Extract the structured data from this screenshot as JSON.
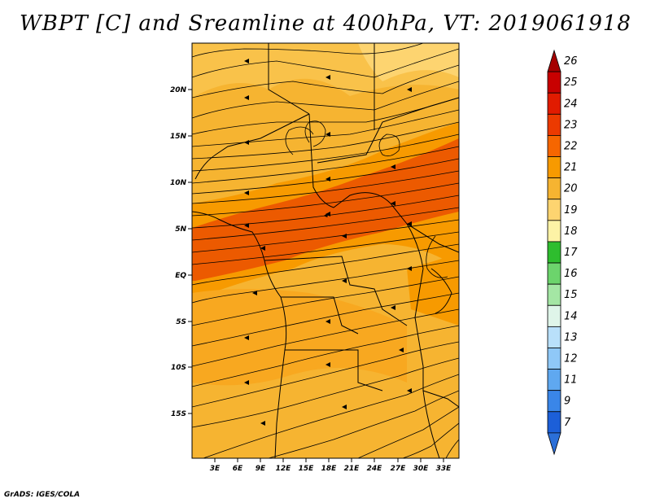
{
  "title": "WBPT [C] and Sreamline at 400hPa, VT: 2019061918",
  "credit": "GrADS: IGES/COLA",
  "lat_ticks": [
    "20N",
    "15N",
    "10N",
    "5N",
    "EQ",
    "5S",
    "10S",
    "15S"
  ],
  "lon_ticks": [
    "3E",
    "6E",
    "9E",
    "12E",
    "15E",
    "18E",
    "21E",
    "24E",
    "27E",
    "30E",
    "33E"
  ],
  "colorbar": {
    "labels": [
      "26",
      "25",
      "24",
      "23",
      "22",
      "21",
      "20",
      "19",
      "18",
      "17",
      "16",
      "15",
      "14",
      "13",
      "12",
      "11",
      "9",
      "7"
    ],
    "colors": [
      "#a50000",
      "#c80000",
      "#e11b00",
      "#ec3a00",
      "#f66600",
      "#f79a00",
      "#f6b431",
      "#fdd470",
      "#fdf3a6",
      "#2ebd2e",
      "#6cd46c",
      "#a4e6a4",
      "#dff5e9",
      "#b9e0fa",
      "#8fc8f7",
      "#5fa8f0",
      "#3a86e8",
      "#1c5fd8",
      "#2b6fd8"
    ]
  }
}
